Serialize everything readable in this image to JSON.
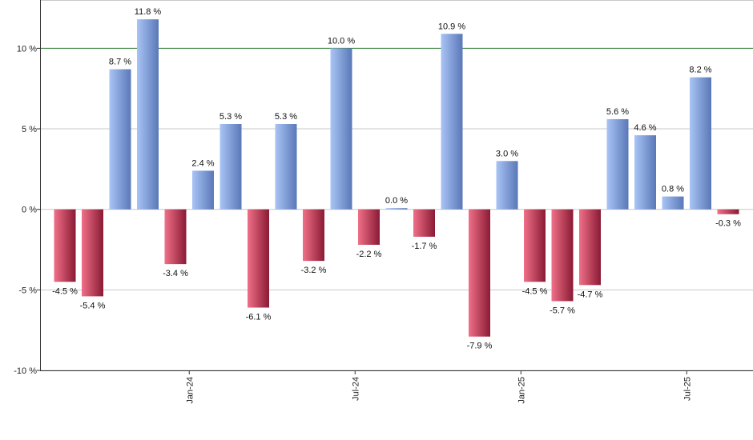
{
  "chart_data": {
    "type": "bar",
    "y_unit_suffix": " %",
    "ylim": [
      -10,
      13
    ],
    "yticks": [
      -10,
      -5,
      0,
      5,
      10
    ],
    "reference_line": 10,
    "grid": true,
    "values": [
      -4.5,
      -5.4,
      8.7,
      11.8,
      -3.4,
      2.4,
      5.3,
      -6.1,
      5.3,
      -3.2,
      10.0,
      -2.2,
      0.0,
      -1.7,
      10.9,
      -7.9,
      3.0,
      -4.5,
      -5.7,
      -4.7,
      5.6,
      4.6,
      0.8,
      8.2,
      -0.3
    ],
    "labels": [
      "-4.5 %",
      "-5.4 %",
      "8.7 %",
      "11.8 %",
      "-3.4 %",
      "2.4 %",
      "5.3 %",
      "-6.1 %",
      "5.3 %",
      "-3.2 %",
      "10.0 %",
      "-2.2 %",
      "0.0 %",
      "-1.7 %",
      "10.9 %",
      "-7.9 %",
      "3.0 %",
      "-4.5 %",
      "-5.7 %",
      "-4.7 %",
      "5.6 %",
      "4.6 %",
      "0.8 %",
      "8.2 %",
      "-0.3 %"
    ],
    "x_tick_labels": [
      {
        "bar_index": 4.5,
        "label": "Jan-24"
      },
      {
        "bar_index": 10.5,
        "label": "Jul-24"
      },
      {
        "bar_index": 16.5,
        "label": "Jan-25"
      },
      {
        "bar_index": 22.5,
        "label": "Jul-25"
      }
    ],
    "colors": {
      "positive_light": "#a9c4f5",
      "positive_dark": "#5a78b8",
      "negative_light": "#f07088",
      "negative_dark": "#8a1a34",
      "reference_line": "#2e7d32",
      "grid": "#c8c8c8",
      "axis": "#333333"
    }
  }
}
